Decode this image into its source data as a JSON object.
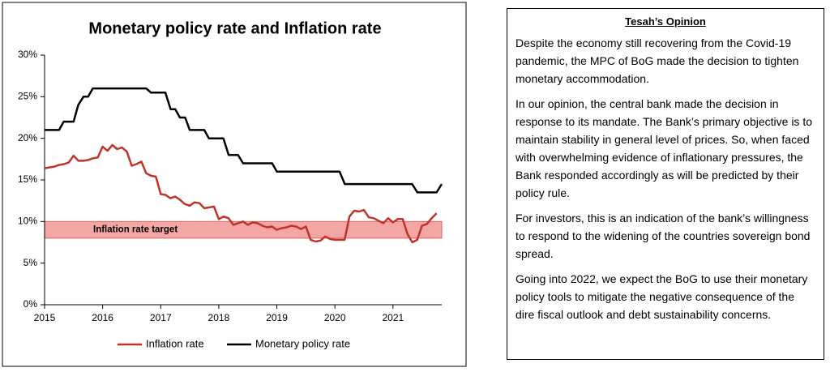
{
  "chart_data": {
    "type": "line",
    "title": "Monetary policy rate and Inflation rate",
    "xlim": [
      2015,
      2021.84
    ],
    "xticks": [
      2015,
      2016,
      2017,
      2018,
      2019,
      2020,
      2021
    ],
    "ylim": [
      0,
      30
    ],
    "yticks": [
      {
        "value": 0,
        "label": "0%"
      },
      {
        "value": 5,
        "label": "5%"
      },
      {
        "value": 10,
        "label": "10%"
      },
      {
        "value": 15,
        "label": "15%"
      },
      {
        "value": 20,
        "label": "20%"
      },
      {
        "value": 25,
        "label": "25%"
      },
      {
        "value": 30,
        "label": "30%"
      }
    ],
    "target_band": [
      8,
      10
    ],
    "target_band_color": "#f4a6a4",
    "target_label": "Inflation rate target",
    "legend": "bottom",
    "series": [
      {
        "name": "Inflation rate",
        "color": "#c1322b",
        "x": [
          2015,
          2015.083,
          2015.167,
          2015.25,
          2015.333,
          2015.417,
          2015.5,
          2015.583,
          2015.667,
          2015.75,
          2015.833,
          2015.917,
          2016,
          2016.083,
          2016.167,
          2016.25,
          2016.333,
          2016.417,
          2016.5,
          2016.583,
          2016.667,
          2016.75,
          2016.833,
          2016.917,
          2017,
          2017.083,
          2017.167,
          2017.25,
          2017.333,
          2017.417,
          2017.5,
          2017.583,
          2017.667,
          2017.75,
          2017.833,
          2017.917,
          2018,
          2018.083,
          2018.167,
          2018.25,
          2018.333,
          2018.417,
          2018.5,
          2018.583,
          2018.667,
          2018.75,
          2018.833,
          2018.917,
          2019,
          2019.083,
          2019.167,
          2019.25,
          2019.333,
          2019.417,
          2019.5,
          2019.583,
          2019.667,
          2019.75,
          2019.833,
          2019.917,
          2020,
          2020.083,
          2020.167,
          2020.25,
          2020.333,
          2020.417,
          2020.5,
          2020.583,
          2020.667,
          2020.75,
          2020.833,
          2020.917,
          2021,
          2021.083,
          2021.167,
          2021.25,
          2021.333,
          2021.417,
          2021.5,
          2021.583,
          2021.667,
          2021.75
        ],
        "values": [
          16.4,
          16.5,
          16.6,
          16.8,
          16.9,
          17.1,
          17.9,
          17.3,
          17.3,
          17.4,
          17.6,
          17.7,
          19.0,
          18.5,
          19.2,
          18.7,
          18.9,
          18.4,
          16.7,
          16.9,
          17.2,
          15.8,
          15.5,
          15.4,
          13.3,
          13.2,
          12.8,
          13.0,
          12.6,
          12.1,
          11.9,
          12.3,
          12.2,
          11.6,
          11.7,
          11.8,
          10.3,
          10.6,
          10.4,
          9.6,
          9.8,
          10.0,
          9.6,
          9.9,
          9.8,
          9.5,
          9.3,
          9.4,
          9.0,
          9.2,
          9.3,
          9.5,
          9.4,
          9.1,
          9.4,
          7.8,
          7.6,
          7.7,
          8.2,
          7.9,
          7.8,
          7.8,
          7.8,
          10.6,
          11.3,
          11.2,
          11.4,
          10.5,
          10.4,
          10.1,
          9.8,
          10.4,
          9.9,
          10.3,
          10.3,
          8.5,
          7.5,
          7.8,
          9.5,
          9.7,
          10.4,
          11.0
        ]
      },
      {
        "name": "Monetary policy rate",
        "color": "#000000",
        "x": [
          2015,
          2015.25,
          2015.33,
          2015.5,
          2015.58,
          2015.67,
          2015.75,
          2015.83,
          2016.75,
          2016.83,
          2017.08,
          2017.17,
          2017.25,
          2017.33,
          2017.42,
          2017.5,
          2017.75,
          2017.83,
          2018.08,
          2018.17,
          2018.33,
          2018.42,
          2018.92,
          2019,
          2020.08,
          2020.17,
          2021.33,
          2021.42,
          2021.75,
          2021.84
        ],
        "values": [
          21,
          21,
          22,
          22,
          24,
          25,
          25,
          26,
          26,
          25.5,
          25.5,
          23.5,
          23.5,
          22.5,
          22.5,
          21,
          21,
          20,
          20,
          18,
          18,
          17,
          17,
          16,
          16,
          14.5,
          14.5,
          13.5,
          13.5,
          14.5
        ]
      }
    ]
  },
  "opinion": {
    "title": "Tesah’s Opinion",
    "paragraphs": [
      "Despite the economy still recovering from the Covid-19 pandemic, the MPC of BoG made the decision to tighten monetary accommodation.",
      "In our opinion, the central bank made the decision in response to its mandate. The Bank’s primary objective is to maintain stability in general level of prices. So, when faced with overwhelming evidence of inflationary pressures, the Bank responded accordingly as will be predicted by their policy rule.",
      "For investors, this is an indication of the bank’s willingness to respond to the widening of the countries sovereign bond spread.",
      "Going into 2022, we expect the BoG to use their monetary policy tools to mitigate the negative consequence of the dire fiscal outlook and debt sustainability concerns."
    ]
  }
}
